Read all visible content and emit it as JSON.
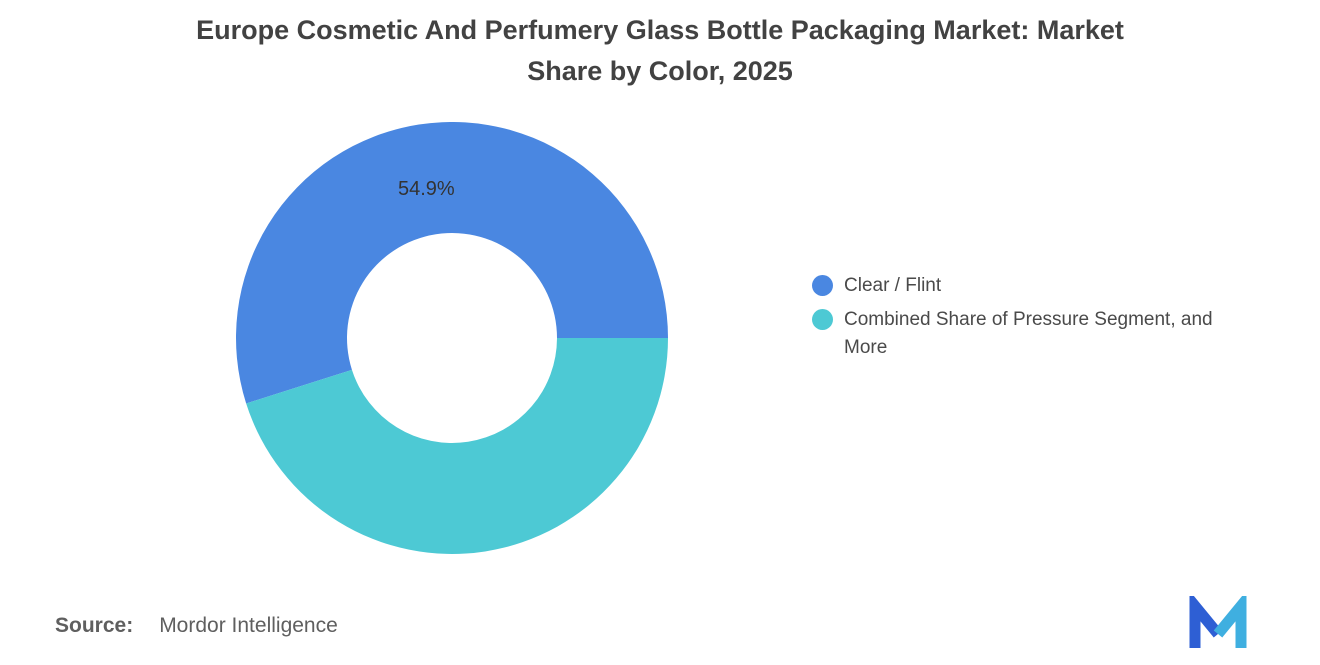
{
  "title": {
    "full": "Europe Cosmetic And Perfumery Glass Bottle Packaging Market: Market Share by Color, 2025",
    "lines": [
      "Europe Cosmetic And Perfumery Glass Bottle Packaging Market: Market",
      "Share by Color, 2025"
    ]
  },
  "chart_data": {
    "type": "pie",
    "subtype": "donut",
    "title": "Europe Cosmetic And Perfumery Glass Bottle Packaging Market: Market Share by Color, 2025",
    "labels": [
      "Clear / Flint",
      "Combined Share of Pressure Segment, and More"
    ],
    "values": [
      54.9,
      45.1
    ],
    "colors": [
      "#4A87E1",
      "#4DC9D4"
    ],
    "data_labels": [
      "54.9%",
      ""
    ],
    "start_angle_deg": 162.36,
    "inner_radius_ratio": 0.486,
    "legend_position": "right",
    "background": "#ffffff"
  },
  "legend": {
    "items": [
      {
        "color": "#4A87E1",
        "lines": [
          "Clear / Flint"
        ]
      },
      {
        "color": "#4DC9D4",
        "lines": [
          "Combined Share of Pressure Segment, and",
          "More"
        ]
      }
    ]
  },
  "source": {
    "label": "Source:",
    "value": "Mordor Intelligence"
  },
  "logo": {
    "icon": "mordor-intelligence-logo"
  }
}
